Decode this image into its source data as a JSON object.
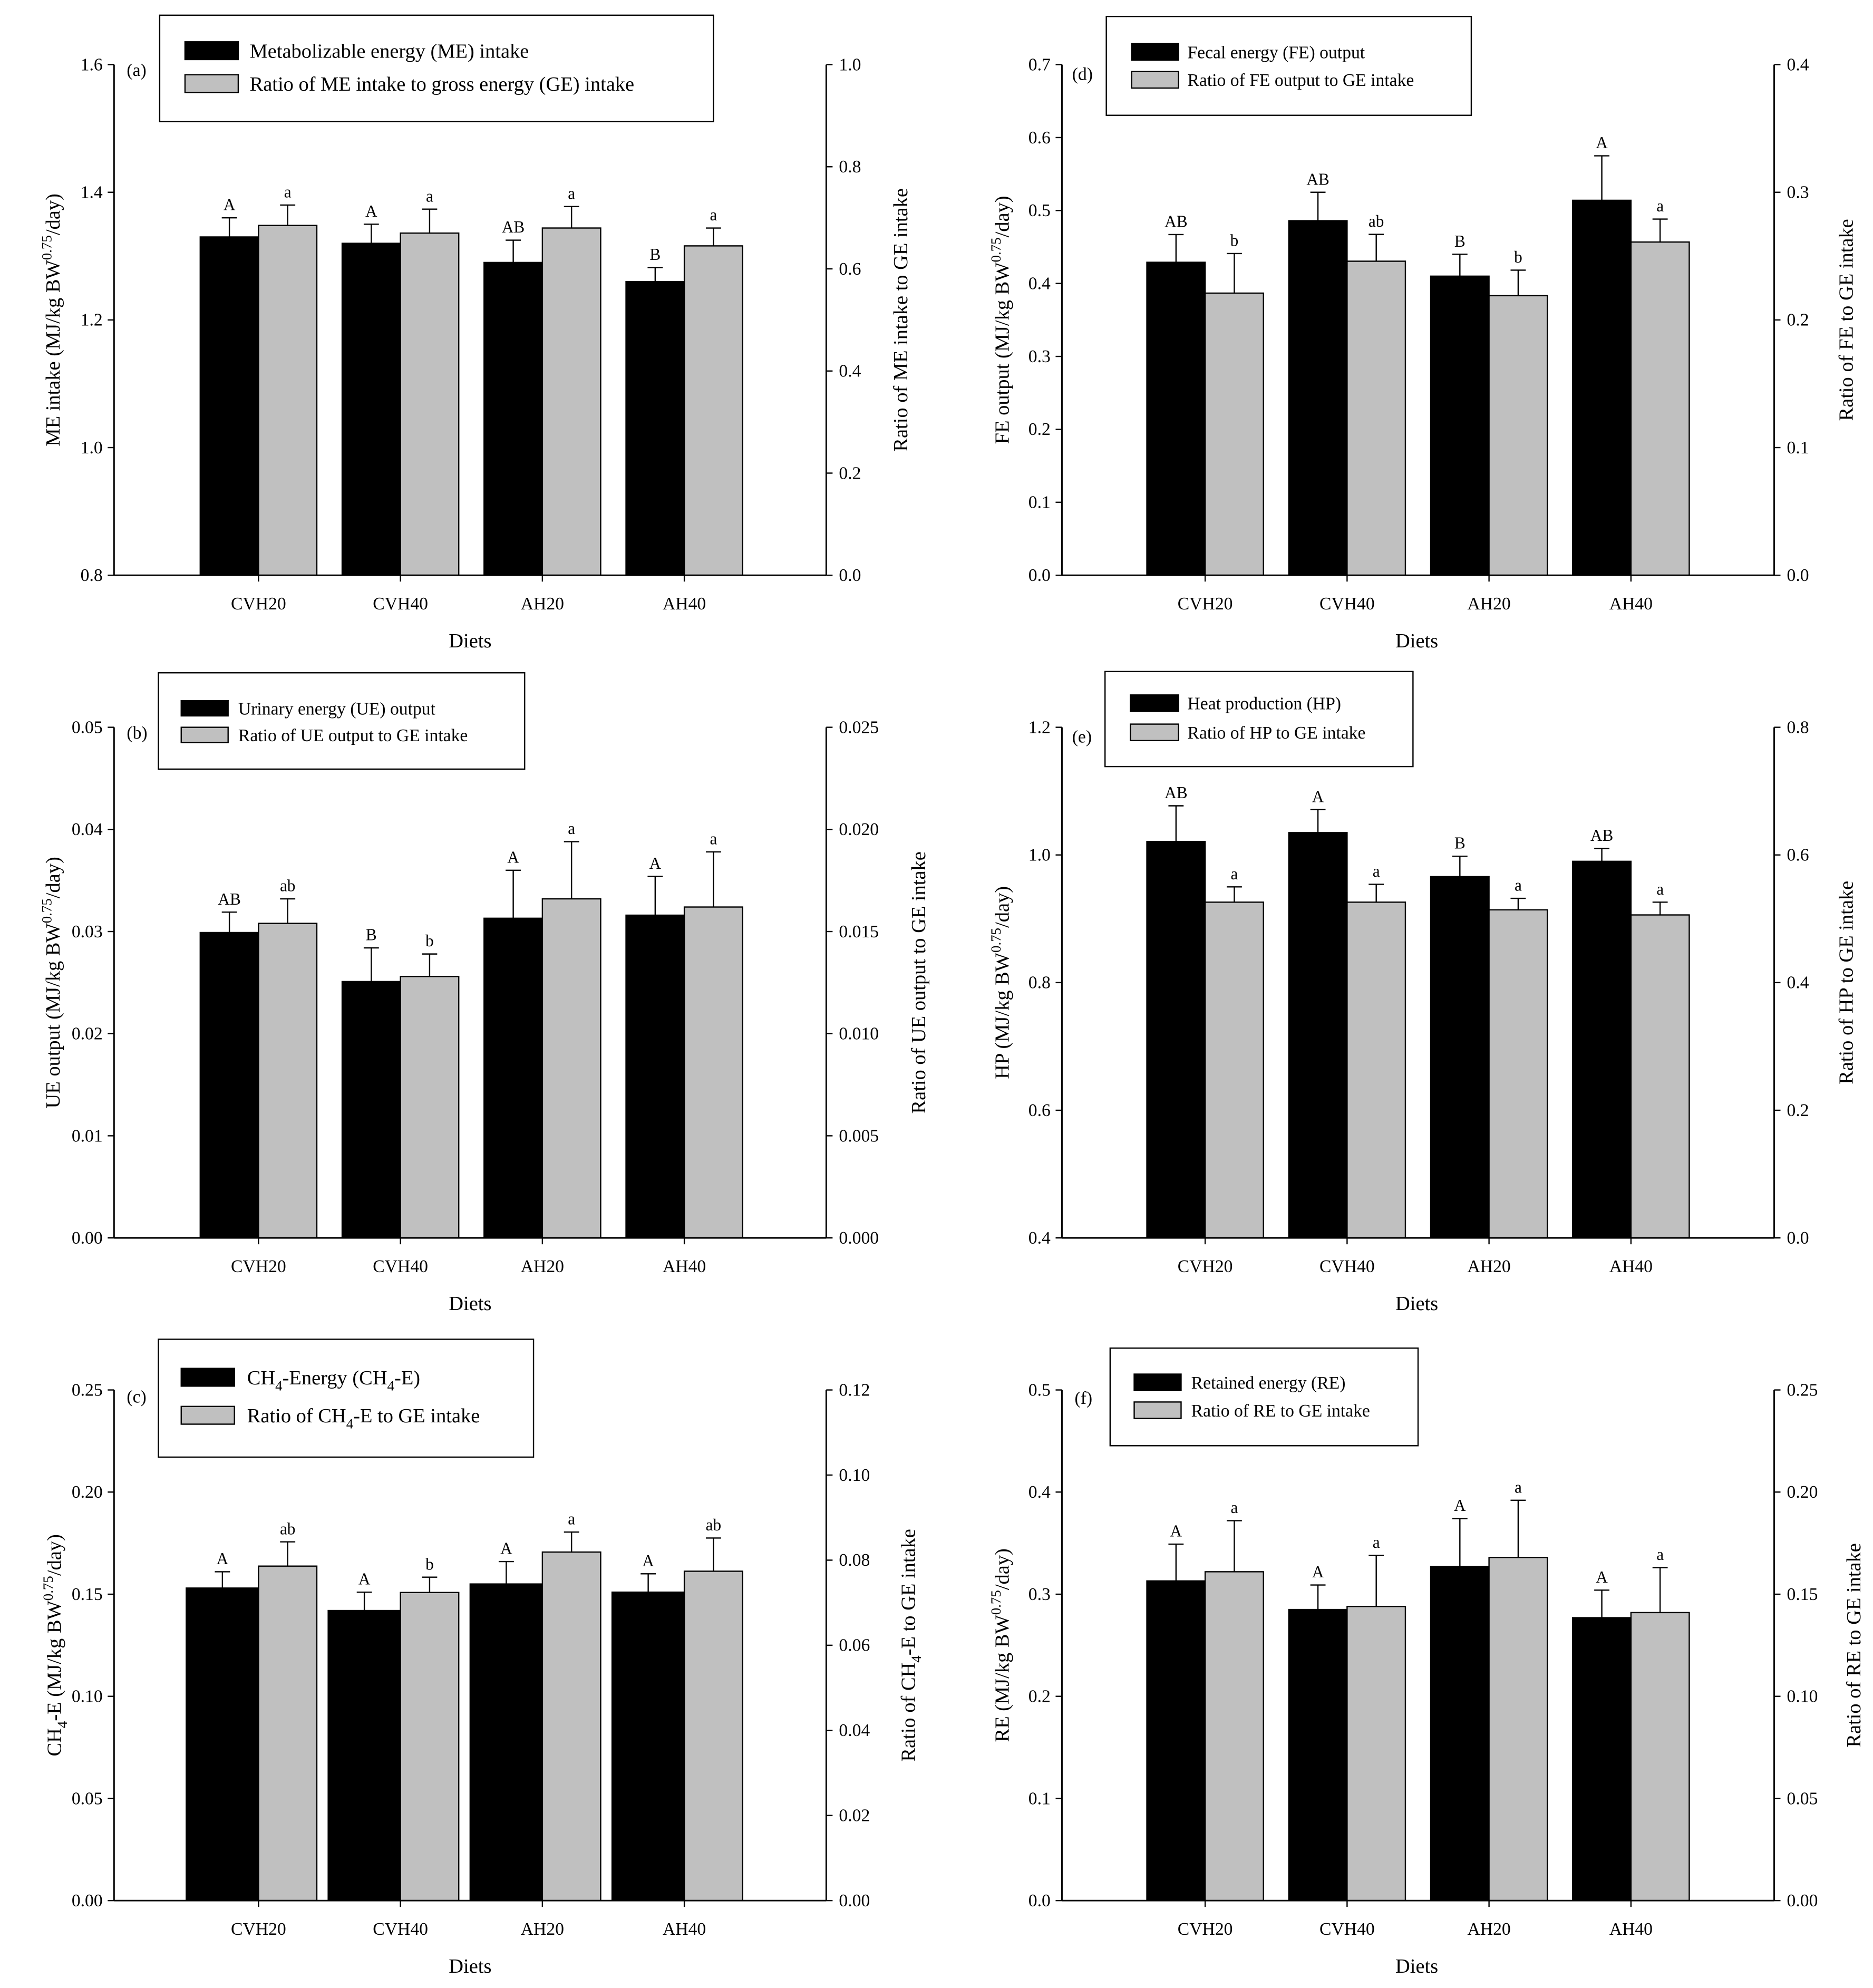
{
  "colors": {
    "bar_primary": "#000000",
    "bar_secondary": "#c0c0c0",
    "axis": "#000000",
    "background": "#ffffff"
  },
  "chart_data": [
    {
      "type": "bar",
      "panel": "(a)",
      "categories": [
        "CVH20",
        "CVH40",
        "AH20",
        "AH40"
      ],
      "xlabel": "Diets",
      "ylabel": [
        {
          "n": "ME intake (MJ/kg BW"
        },
        {
          "sup": "0.75"
        },
        {
          "n": "/day)"
        }
      ],
      "ylim": [
        0.8,
        1.6
      ],
      "yticks": [
        "0.8",
        "1.0",
        "1.2",
        "1.4",
        "1.6"
      ],
      "y2label": [
        {
          "n": "Ratio of ME intake to GE intake"
        }
      ],
      "y2lim": [
        0.0,
        1.0
      ],
      "y2ticks": [
        "0.0",
        "0.2",
        "0.4",
        "0.6",
        "0.8",
        "1.0"
      ],
      "series": [
        {
          "name": [
            {
              "n": "Metabolizable energy (ME) intake"
            }
          ],
          "values": [
            1.33,
            1.32,
            1.29,
            1.26
          ],
          "errors": [
            0.03,
            0.03,
            0.035,
            0.022
          ],
          "letters": [
            "A",
            "A",
            "AB",
            "B"
          ]
        },
        {
          "name": [
            {
              "n": "Ratio of ME intake to gross energy (GE) intake"
            }
          ],
          "values": [
            0.685,
            0.67,
            0.68,
            0.645
          ],
          "errors": [
            0.04,
            0.047,
            0.042,
            0.035
          ],
          "letters": [
            "a",
            "a",
            "a",
            "a"
          ]
        }
      ]
    },
    {
      "type": "bar",
      "panel": "(b)",
      "categories": [
        "CVH20",
        "CVH40",
        "AH20",
        "AH40"
      ],
      "xlabel": "Diets",
      "ylabel": [
        {
          "n": "UE output (MJ/kg BW"
        },
        {
          "sup": "0.75"
        },
        {
          "n": "/day)"
        }
      ],
      "ylim": [
        0.0,
        0.05
      ],
      "yticks": [
        "0.00",
        "0.01",
        "0.02",
        "0.03",
        "0.04",
        "0.05"
      ],
      "y2label": [
        {
          "n": "Ratio of UE output to GE intake"
        }
      ],
      "y2lim": [
        0.0,
        0.025
      ],
      "y2ticks": [
        "0.000",
        "0.005",
        "0.010",
        "0.015",
        "0.020",
        "0.025"
      ],
      "series": [
        {
          "name": [
            {
              "n": "Urinary energy (UE) output"
            }
          ],
          "values": [
            0.0299,
            0.0251,
            0.0313,
            0.0316
          ],
          "errors": [
            0.002,
            0.0033,
            0.0047,
            0.0038
          ],
          "letters": [
            "AB",
            "B",
            "A",
            "A"
          ]
        },
        {
          "name": [
            {
              "n": "Ratio of UE output to GE intake"
            }
          ],
          "values": [
            0.0154,
            0.0128,
            0.0166,
            0.0162
          ],
          "errors": [
            0.0012,
            0.0011,
            0.0028,
            0.0027
          ],
          "letters": [
            "ab",
            "b",
            "a",
            "a"
          ]
        }
      ]
    },
    {
      "type": "bar",
      "panel": "(c)",
      "categories": [
        "CVH20",
        "CVH40",
        "AH20",
        "AH40"
      ],
      "xlabel": "Diets",
      "ylabel": [
        {
          "n": "CH"
        },
        {
          "sub": "4"
        },
        {
          "n": "-E (MJ/kg BW"
        },
        {
          "sup": "0.75"
        },
        {
          "n": "/day)"
        }
      ],
      "ylim": [
        0.0,
        0.25
      ],
      "yticks": [
        "0.00",
        "0.05",
        "0.10",
        "0.15",
        "0.20",
        "0.25"
      ],
      "y2label": [
        {
          "n": "Ratio of CH"
        },
        {
          "sub": "4"
        },
        {
          "n": "-E to GE intake"
        }
      ],
      "y2lim": [
        0.0,
        0.12
      ],
      "y2ticks": [
        "0.00",
        "0.02",
        "0.04",
        "0.06",
        "0.08",
        "0.10",
        "0.12"
      ],
      "series": [
        {
          "name": [
            {
              "n": "CH"
            },
            {
              "sub": "4"
            },
            {
              "n": "-Energy (CH"
            },
            {
              "sub": "4"
            },
            {
              "n": "-E)"
            }
          ],
          "values": [
            0.153,
            0.142,
            0.155,
            0.151
          ],
          "errors": [
            0.008,
            0.009,
            0.011,
            0.009
          ],
          "letters": [
            "A",
            "A",
            "A",
            "A"
          ]
        },
        {
          "name": [
            {
              "n": "Ratio of CH"
            },
            {
              "sub": "4"
            },
            {
              "n": "-E to GE intake"
            }
          ],
          "values": [
            0.0786,
            0.0724,
            0.0819,
            0.0774
          ],
          "errors": [
            0.0057,
            0.0036,
            0.0047,
            0.0078
          ],
          "letters": [
            "ab",
            "b",
            "a",
            "ab"
          ]
        }
      ]
    },
    {
      "type": "bar",
      "panel": "(d)",
      "categories": [
        "CVH20",
        "CVH40",
        "AH20",
        "AH40"
      ],
      "xlabel": "Diets",
      "ylabel": [
        {
          "n": "FE output  (MJ/kg BW"
        },
        {
          "sup": "0.75"
        },
        {
          "n": "/day)"
        }
      ],
      "ylim": [
        0.0,
        0.7
      ],
      "yticks": [
        "0.0",
        "0.1",
        "0.2",
        "0.3",
        "0.4",
        "0.5",
        "0.6",
        "0.7"
      ],
      "y2label": [
        {
          "n": "Ratio of  FE to GE intake"
        }
      ],
      "y2lim": [
        0.0,
        0.4
      ],
      "y2ticks": [
        "0.0",
        "0.1",
        "0.2",
        "0.3",
        "0.4"
      ],
      "series": [
        {
          "name": [
            {
              "n": "Fecal energy (FE) output"
            }
          ],
          "values": [
            0.429,
            0.486,
            0.41,
            0.514
          ],
          "errors": [
            0.038,
            0.039,
            0.03,
            0.061
          ],
          "letters": [
            "AB",
            "AB",
            "B",
            "A"
          ]
        },
        {
          "name": [
            {
              "n": "Ratio of FE output to GE intake"
            }
          ],
          "values": [
            0.221,
            0.246,
            0.219,
            0.261
          ],
          "errors": [
            0.031,
            0.021,
            0.02,
            0.018
          ],
          "letters": [
            "b",
            "ab",
            "b",
            "a"
          ]
        }
      ]
    },
    {
      "type": "bar",
      "panel": "(e)",
      "categories": [
        "CVH20",
        "CVH40",
        "AH20",
        "AH40"
      ],
      "xlabel": "Diets",
      "ylabel": [
        {
          "n": "HP (MJ/kg BW"
        },
        {
          "sup": "0.75"
        },
        {
          "n": "/day)"
        }
      ],
      "ylim": [
        0.4,
        1.2
      ],
      "yticks": [
        "0.4",
        "0.6",
        "0.8",
        "1.0",
        "1.2"
      ],
      "y2label": [
        {
          "n": "Ratio of  HP to GE intake"
        }
      ],
      "y2lim": [
        0.0,
        0.8
      ],
      "y2ticks": [
        "0.0",
        "0.2",
        "0.4",
        "0.6",
        "0.8"
      ],
      "series": [
        {
          "name": [
            {
              "n": "Heat production (HP)"
            }
          ],
          "values": [
            1.021,
            1.035,
            0.966,
            0.99
          ],
          "errors": [
            0.056,
            0.036,
            0.032,
            0.02
          ],
          "letters": [
            "AB",
            "A",
            "B",
            "AB"
          ]
        },
        {
          "name": [
            {
              "n": "Ratio of HP to GE intake"
            }
          ],
          "values": [
            0.526,
            0.526,
            0.514,
            0.506
          ],
          "errors": [
            0.024,
            0.028,
            0.018,
            0.02
          ],
          "letters": [
            "a",
            "a",
            "a",
            "a"
          ]
        }
      ]
    },
    {
      "type": "bar",
      "panel": "(f)",
      "categories": [
        "CVH20",
        "CVH40",
        "AH20",
        "AH40"
      ],
      "xlabel": "Diets",
      "ylabel": [
        {
          "n": "RE  (MJ/kg BW"
        },
        {
          "sup": "0.75"
        },
        {
          "n": "/day)"
        }
      ],
      "ylim": [
        0.0,
        0.5
      ],
      "yticks": [
        "0.0",
        "0.1",
        "0.2",
        "0.3",
        "0.4",
        "0.5"
      ],
      "y2label": [
        {
          "n": "Ratio of  RE to GE intake"
        }
      ],
      "y2lim": [
        0.0,
        0.25
      ],
      "y2ticks": [
        "0.00",
        "0.05",
        "0.10",
        "0.15",
        "0.20",
        "0.25"
      ],
      "series": [
        {
          "name": [
            {
              "n": "Retained energy (RE)"
            }
          ],
          "values": [
            0.313,
            0.285,
            0.327,
            0.277
          ],
          "errors": [
            0.036,
            0.024,
            0.047,
            0.027
          ],
          "letters": [
            "A",
            "A",
            "A",
            "A"
          ]
        },
        {
          "name": [
            {
              "n": "Ratio of RE to GE intake"
            }
          ],
          "values": [
            0.161,
            0.144,
            0.168,
            0.141
          ],
          "errors": [
            0.025,
            0.025,
            0.028,
            0.022
          ],
          "letters": [
            "a",
            "a",
            "a",
            "a"
          ]
        }
      ]
    }
  ]
}
